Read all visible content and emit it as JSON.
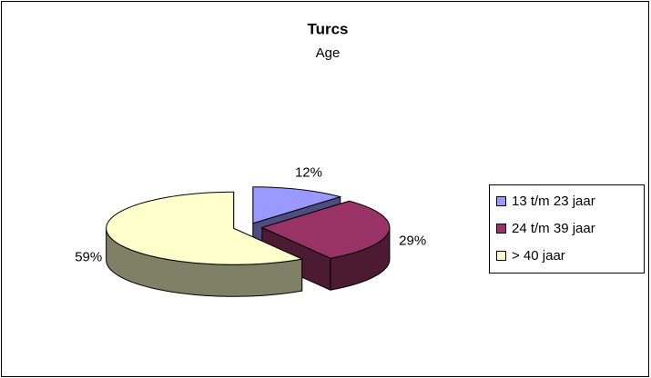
{
  "chart_data": {
    "type": "pie3d",
    "title": "Turcs",
    "subtitle": "Age",
    "categories": [
      "13 t/m 23 jaar",
      "24 t/m 39 jaar",
      "> 40 jaar"
    ],
    "values": [
      12,
      29,
      59
    ],
    "value_labels": [
      "12%",
      "29%",
      "59%"
    ],
    "colors": [
      "#9999ff",
      "#993366",
      "#ffffcc"
    ],
    "legend": "right"
  }
}
